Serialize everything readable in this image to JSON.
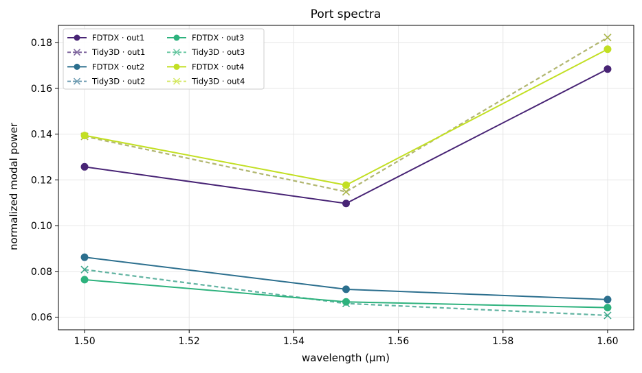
{
  "chart_data": {
    "type": "line",
    "title": "Port spectra",
    "xlabel": "wavelength (µm)",
    "ylabel": "normalized modal power",
    "x": [
      1.5,
      1.55,
      1.6
    ],
    "xlim": [
      1.495,
      1.605
    ],
    "ylim": [
      0.0545,
      0.1875
    ],
    "xticks": [
      1.5,
      1.52,
      1.54,
      1.56,
      1.58,
      1.6
    ],
    "xtick_labels": [
      "1.50",
      "1.52",
      "1.54",
      "1.56",
      "1.58",
      "1.60"
    ],
    "yticks": [
      0.06,
      0.08,
      0.1,
      0.12,
      0.14,
      0.16,
      0.18
    ],
    "ytick_labels": [
      "0.06",
      "0.08",
      "0.10",
      "0.12",
      "0.14",
      "0.16",
      "0.18"
    ],
    "grid": true,
    "legend_position": "top-left",
    "legend_columns": 2,
    "series": [
      {
        "name": "FDTDX · out1",
        "values": [
          0.1257,
          0.1097,
          0.1684
        ],
        "color": "#482475",
        "style": "solid",
        "marker": "circle"
      },
      {
        "name": "Tidy3D · out1",
        "values": [
          0.139,
          0.1148,
          0.1822
        ],
        "color": "#482475",
        "style": "dashed",
        "marker": "x"
      },
      {
        "name": "FDTDX · out2",
        "values": [
          0.0862,
          0.0722,
          0.0677
        ],
        "color": "#2c6f8e",
        "style": "solid",
        "marker": "circle"
      },
      {
        "name": "Tidy3D · out2",
        "values": [
          0.0808,
          0.066,
          0.0608
        ],
        "color": "#2c6f8e",
        "style": "dashed",
        "marker": "x"
      },
      {
        "name": "FDTDX · out3",
        "values": [
          0.0764,
          0.0667,
          0.0642
        ],
        "color": "#2db27d",
        "style": "solid",
        "marker": "circle"
      },
      {
        "name": "Tidy3D · out3",
        "values": [
          0.0808,
          0.066,
          0.0608
        ],
        "color": "#2db27d",
        "style": "dashed",
        "marker": "x"
      },
      {
        "name": "FDTDX · out4",
        "values": [
          0.1394,
          0.1177,
          0.1771
        ],
        "color": "#c2df23",
        "style": "solid",
        "marker": "circle"
      },
      {
        "name": "Tidy3D · out4",
        "values": [
          0.139,
          0.1148,
          0.1822
        ],
        "color": "#c2df23",
        "style": "dashed",
        "marker": "x"
      }
    ]
  }
}
